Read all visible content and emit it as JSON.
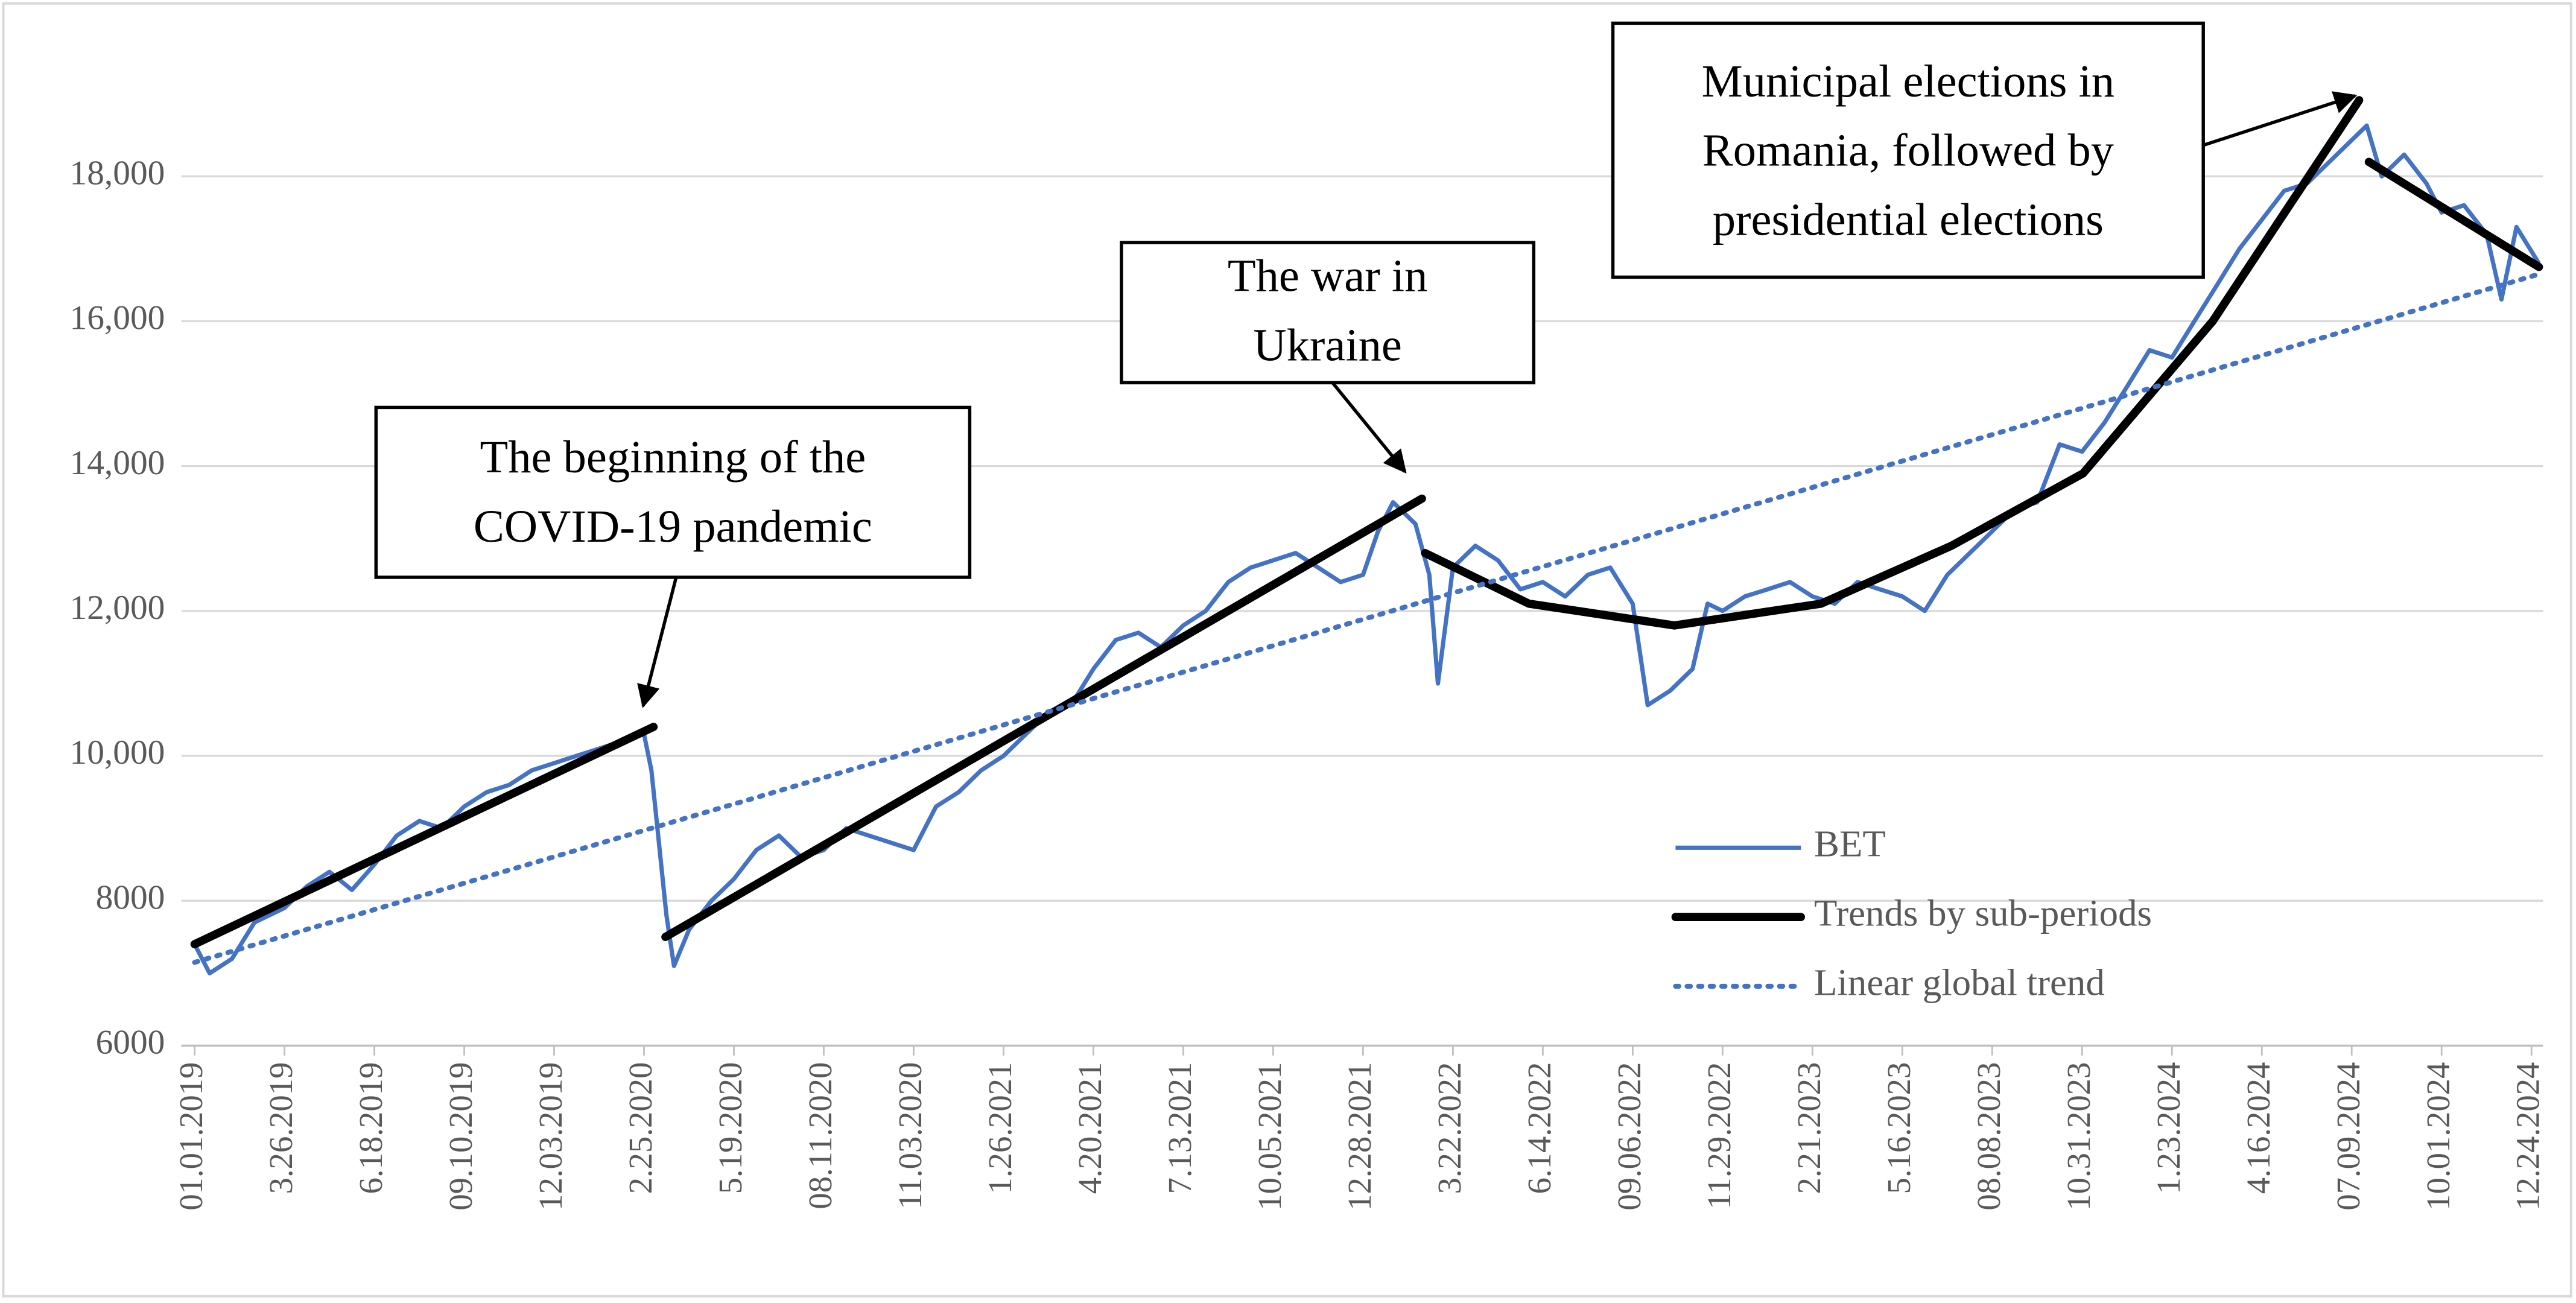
{
  "chart_data": {
    "type": "line",
    "ylim": [
      6000,
      20000
    ],
    "yticks": [
      6000,
      8000,
      {
        "value": 10000,
        "label": "10,000"
      },
      {
        "value": 12000,
        "label": "12,000"
      },
      {
        "value": 14000,
        "label": "14,000"
      },
      {
        "value": 16000,
        "label": "16,000"
      },
      {
        "value": 18000,
        "label": "18,000"
      }
    ],
    "grid": true,
    "xticks": [
      {
        "value": "2019-01-01",
        "label": "01.01.2019"
      },
      {
        "value": "2019-03-26",
        "label": "3.26.2019"
      },
      {
        "value": "2019-06-18",
        "label": "6.18.2019"
      },
      {
        "value": "2019-09-10",
        "label": "09.10.2019"
      },
      {
        "value": "2019-12-03",
        "label": "12.03.2019"
      },
      {
        "value": "2020-02-25",
        "label": "2.25.2020"
      },
      {
        "value": "2020-05-19",
        "label": "5.19.2020"
      },
      {
        "value": "2020-08-11",
        "label": "08.11.2020"
      },
      {
        "value": "2020-11-03",
        "label": "11.03.2020"
      },
      {
        "value": "2021-01-26",
        "label": "1.26.2021"
      },
      {
        "value": "2021-04-20",
        "label": "4.20.2021"
      },
      {
        "value": "2021-07-13",
        "label": "7.13.2021"
      },
      {
        "value": "2021-10-05",
        "label": "10.05.2021"
      },
      {
        "value": "2021-12-28",
        "label": "12.28.2021"
      },
      {
        "value": "2022-03-22",
        "label": "3.22.2022"
      },
      {
        "value": "2022-06-14",
        "label": "6.14.2022"
      },
      {
        "value": "2022-09-06",
        "label": "09.06.2022"
      },
      {
        "value": "2022-11-29",
        "label": "11.29.2022"
      },
      {
        "value": "2023-02-21",
        "label": "2.21.2023"
      },
      {
        "value": "2023-05-16",
        "label": "5.16.2023"
      },
      {
        "value": "2023-08-08",
        "label": "08.08.2023"
      },
      {
        "value": "2023-10-31",
        "label": "10.31.2023"
      },
      {
        "value": "2024-01-23",
        "label": "1.23.2024"
      },
      {
        "value": "2024-04-16",
        "label": "4.16.2024"
      },
      {
        "value": "2024-07-09",
        "label": "07.09.2024"
      },
      {
        "value": "2024-10-01",
        "label": "10.01.2024"
      },
      {
        "value": "2024-12-24",
        "label": "12.24.2024"
      }
    ],
    "series": [
      {
        "name": "BET",
        "color": "#4472c4",
        "style": "solid",
        "x": [
          "2019-01-01",
          "2019-01-15",
          "2019-02-05",
          "2019-02-26",
          "2019-03-26",
          "2019-04-16",
          "2019-05-07",
          "2019-05-28",
          "2019-06-18",
          "2019-07-09",
          "2019-07-30",
          "2019-08-20",
          "2019-09-10",
          "2019-10-01",
          "2019-10-22",
          "2019-11-12",
          "2019-12-03",
          "2019-12-24",
          "2020-01-14",
          "2020-02-04",
          "2020-02-25",
          "2020-03-03",
          "2020-03-17",
          "2020-03-24",
          "2020-04-07",
          "2020-04-28",
          "2020-05-19",
          "2020-06-09",
          "2020-06-30",
          "2020-07-21",
          "2020-08-11",
          "2020-09-01",
          "2020-09-22",
          "2020-10-13",
          "2020-11-03",
          "2020-11-24",
          "2020-12-15",
          "2021-01-05",
          "2021-01-26",
          "2021-02-16",
          "2021-03-09",
          "2021-03-30",
          "2021-04-20",
          "2021-05-11",
          "2021-06-01",
          "2021-06-22",
          "2021-07-13",
          "2021-08-03",
          "2021-08-24",
          "2021-09-14",
          "2021-10-05",
          "2021-10-26",
          "2021-11-16",
          "2021-12-07",
          "2021-12-28",
          "2022-01-11",
          "2022-01-25",
          "2022-02-15",
          "2022-02-28",
          "2022-03-08",
          "2022-03-22",
          "2022-04-12",
          "2022-05-03",
          "2022-05-24",
          "2022-06-14",
          "2022-07-05",
          "2022-07-26",
          "2022-08-16",
          "2022-09-06",
          "2022-09-20",
          "2022-10-11",
          "2022-11-01",
          "2022-11-15",
          "2022-11-29",
          "2022-12-20",
          "2023-01-10",
          "2023-01-31",
          "2023-02-21",
          "2023-03-14",
          "2023-04-04",
          "2023-04-25",
          "2023-05-16",
          "2023-06-06",
          "2023-06-27",
          "2023-07-18",
          "2023-08-08",
          "2023-08-29",
          "2023-09-19",
          "2023-10-10",
          "2023-10-31",
          "2023-11-21",
          "2023-12-12",
          "2024-01-02",
          "2024-01-23",
          "2024-02-13",
          "2024-03-05",
          "2024-03-26",
          "2024-04-16",
          "2024-05-07",
          "2024-05-28",
          "2024-06-18",
          "2024-07-09",
          "2024-07-23",
          "2024-08-06",
          "2024-08-27",
          "2024-09-17",
          "2024-10-01",
          "2024-10-22",
          "2024-11-12",
          "2024-11-26",
          "2024-12-10",
          "2024-12-31"
        ],
        "values": [
          7400,
          7000,
          7200,
          7700,
          7900,
          8200,
          8400,
          8150,
          8500,
          8900,
          9100,
          9000,
          9300,
          9500,
          9600,
          9800,
          9900,
          10000,
          10100,
          10200,
          10300,
          9800,
          7800,
          7100,
          7600,
          8000,
          8300,
          8700,
          8900,
          8600,
          8700,
          9000,
          8900,
          8800,
          8700,
          9300,
          9500,
          9800,
          10000,
          10300,
          10600,
          10700,
          11200,
          11600,
          11700,
          11500,
          11800,
          12000,
          12400,
          12600,
          12700,
          12800,
          12600,
          12400,
          12500,
          13100,
          13500,
          13200,
          12500,
          11000,
          12600,
          12900,
          12700,
          12300,
          12400,
          12200,
          12500,
          12600,
          12100,
          10700,
          10900,
          11200,
          12100,
          12000,
          12200,
          12300,
          12400,
          12200,
          12100,
          12400,
          12300,
          12200,
          12000,
          12500,
          12800,
          13100,
          13400,
          13500,
          14300,
          14200,
          14600,
          15100,
          15600,
          15500,
          16000,
          16500,
          17000,
          17400,
          17800,
          17900,
          18200,
          18500,
          18700,
          18000,
          18300,
          17900,
          17500,
          17600,
          17200,
          16300,
          17300,
          16800
        ]
      },
      {
        "name": "Trends by sub-periods",
        "color": "#000000",
        "style": "thick",
        "x": [
          "2019-01-01",
          "2020-03-05",
          null,
          "2020-03-16",
          "2022-02-21",
          null,
          "2022-02-24",
          "2022-06-01",
          "2022-10-15",
          "2023-03-01",
          "2023-07-01",
          "2023-11-01",
          "2024-03-01",
          "2024-07-16",
          null,
          "2024-07-25",
          "2024-12-31"
        ],
        "values": [
          7400,
          10400,
          null,
          7500,
          13550,
          null,
          12800,
          12100,
          11800,
          12100,
          12900,
          13900,
          16000,
          19050,
          null,
          18200,
          16750
        ]
      },
      {
        "name": "Linear global trend",
        "color": "#4472c4",
        "style": "dotted",
        "x": [
          "2019-01-01",
          "2024-12-31"
        ],
        "values": [
          7150,
          16650
        ]
      }
    ],
    "annotations": [
      {
        "lines": [
          "The beginning of the",
          "COVID-19 pandemic"
        ]
      },
      {
        "lines": [
          "The war in",
          "Ukraine"
        ]
      },
      {
        "lines": [
          "Municipal elections in",
          "Romania, followed by",
          "presidential elections"
        ]
      }
    ]
  }
}
